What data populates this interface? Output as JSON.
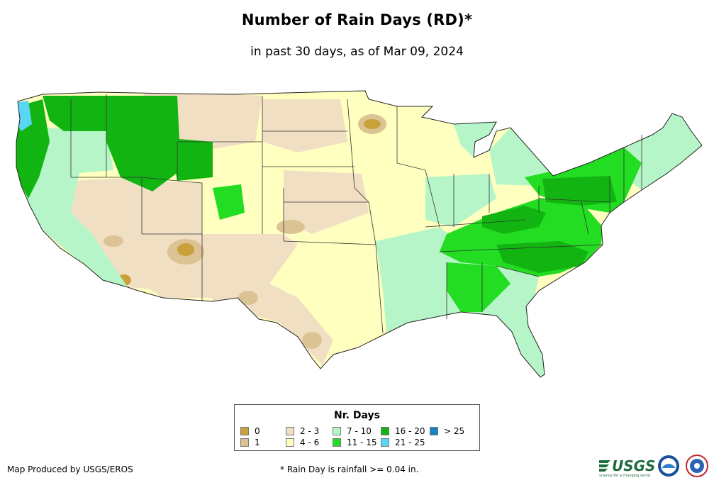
{
  "title": "Number of Rain Days (RD)*",
  "subtitle": "in past 30 days, as of Mar 09, 2024",
  "legend": {
    "title": "Nr. Days",
    "items": [
      {
        "label": "0",
        "color": "#c8a13a"
      },
      {
        "label": "1",
        "color": "#dcc394"
      },
      {
        "label": "2 - 3",
        "color": "#f1dfc3"
      },
      {
        "label": "4 - 6",
        "color": "#ffffc0"
      },
      {
        "label": "7 - 10",
        "color": "#b6f5c8"
      },
      {
        "label": "11 - 15",
        "color": "#22dd22"
      },
      {
        "label": "16 - 20",
        "color": "#12b412"
      },
      {
        "label": "21 - 25",
        "color": "#5ad6f5"
      },
      {
        "label": "> 25",
        "color": "#1483c8"
      }
    ]
  },
  "footer": {
    "producer": "Map Produced by USGS/EROS",
    "note": "* Rain Day is rainfall >= 0.04 in."
  },
  "logos": {
    "usgs": "USGS",
    "usgs_tagline": "science for a changing world",
    "noaa_icon": "noaa-logo-icon",
    "nws_icon": "national-weather-service-logo-icon"
  }
}
